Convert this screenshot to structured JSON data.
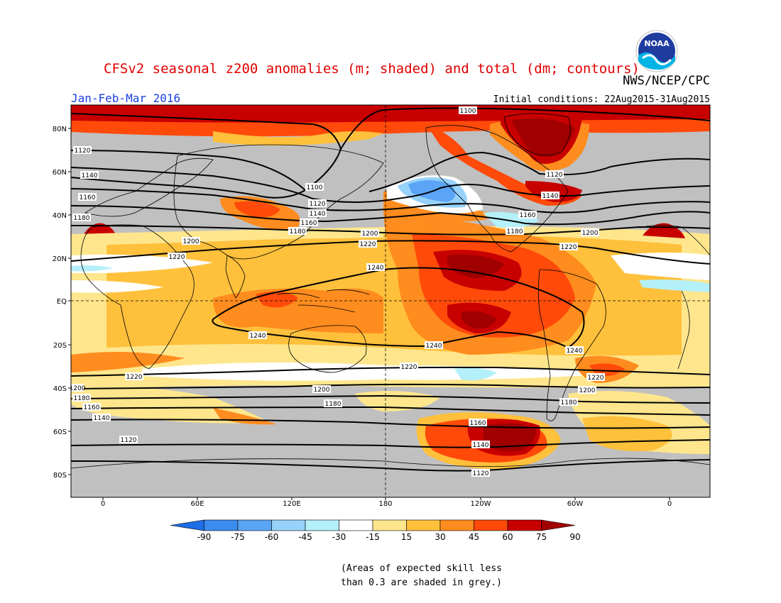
{
  "title": "CFSv2 seasonal z200 anomalies (m; shaded) and total (dm; contours)",
  "agency": "NWS/NCEP/CPC",
  "period": "Jan-Feb-Mar 2016",
  "initial_conditions": "Initial conditions: 22Aug2015-31Aug2015",
  "logo_text": "NOAA",
  "note_line1": "(Areas of expected skill less",
  "note_line2": "than 0.3 are shaded in grey.)",
  "lat_labels": [
    "80N",
    "60N",
    "40N",
    "20N",
    "EQ",
    "20S",
    "40S",
    "60S",
    "80S"
  ],
  "lon_labels": [
    "0",
    "60E",
    "120E",
    "180",
    "120W",
    "60W",
    "0"
  ],
  "colorbar": {
    "labels": [
      "-90",
      "-75",
      "-60",
      "-45",
      "-30",
      "-15",
      "15",
      "30",
      "45",
      "60",
      "75",
      "90"
    ],
    "colors": [
      "#1e6ee6",
      "#3c8cf0",
      "#5aa5f5",
      "#96d2fa",
      "#b4f0fa",
      "#ffffff",
      "#ffe68c",
      "#ffc03c",
      "#ff8c1e",
      "#ff4a0a",
      "#c80000",
      "#a00000"
    ]
  },
  "contour_labels": [
    "1100",
    "1120",
    "1140",
    "1160",
    "1180",
    "1200",
    "1220",
    "1240"
  ],
  "colors": {
    "skill_grey": "#c0c0c0",
    "title_red": "#e00000",
    "period_blue": "#1a3fe0"
  }
}
